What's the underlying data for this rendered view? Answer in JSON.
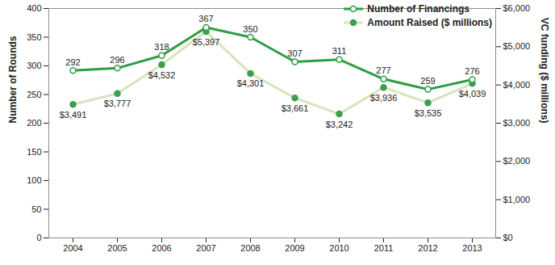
{
  "chart_data": {
    "type": "line",
    "categories": [
      "2004",
      "2005",
      "2006",
      "2007",
      "2008",
      "2009",
      "2010",
      "2011",
      "2012",
      "2013"
    ],
    "series": [
      {
        "name": "Number of Financings",
        "color": "#2e9e44",
        "marker": "open_circle",
        "values": [
          292,
          296,
          318,
          367,
          350,
          307,
          311,
          277,
          259,
          276
        ]
      },
      {
        "name": "Amount Raised ($ millions)",
        "color": "#d7e4bd",
        "marker": "circle",
        "axis": "y2",
        "values": [
          3491,
          3777,
          4532,
          5397,
          4301,
          3661,
          3242,
          3936,
          3535,
          4039
        ],
        "value_labels": [
          "$3,491",
          "$3,777",
          "$4,532",
          "$5,397",
          "$4,301",
          "$3,661",
          "$3,242",
          "$3,936",
          "$3,535",
          "$4,039"
        ]
      }
    ],
    "y_label": "Number of Rounds",
    "y2_label": "VC funding ($ millions)",
    "ylim": [
      0,
      400
    ],
    "yticks": [
      0,
      50,
      100,
      150,
      200,
      250,
      300,
      350,
      400
    ],
    "y2lim": [
      0,
      6000
    ],
    "y2ticks": [
      {
        "value": 0,
        "label": "$0"
      },
      {
        "value": 1000,
        "label": "$1,000"
      },
      {
        "value": 2000,
        "label": "$2,000"
      },
      {
        "value": 3000,
        "label": "$3,000"
      },
      {
        "value": 4000,
        "label": "$4,000"
      },
      {
        "value": 5000,
        "label": "$5,000"
      },
      {
        "value": 6000,
        "label": "$6,000"
      }
    ],
    "data_labels": true,
    "legend": "top-right",
    "grid": false
  }
}
